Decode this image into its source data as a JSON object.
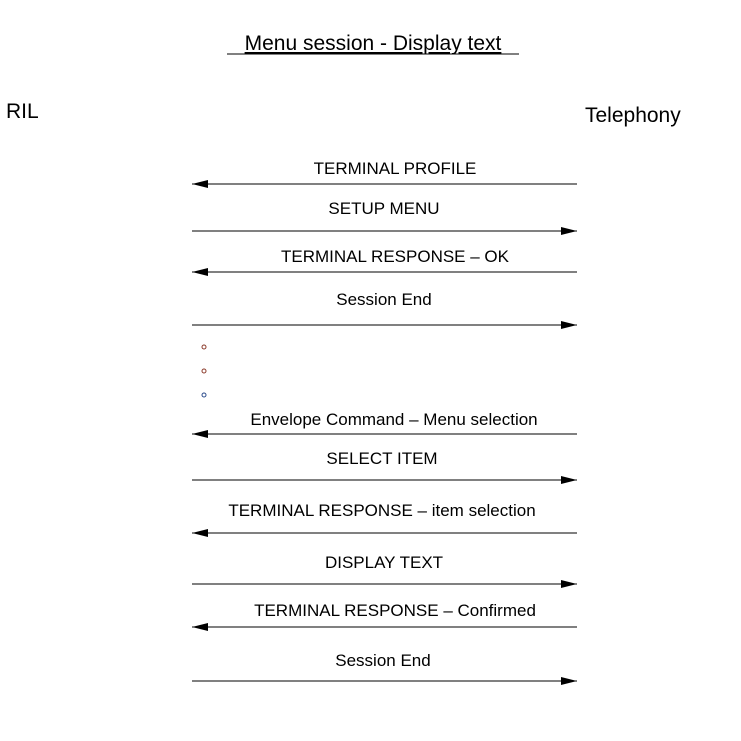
{
  "title": "Menu session - Display text",
  "participants": {
    "left": "RIL",
    "right": "Telephony"
  },
  "messages": [
    {
      "label": "TERMINAL PROFILE",
      "direction": "left"
    },
    {
      "label": "SETUP MENU",
      "direction": "right"
    },
    {
      "label": "TERMINAL RESPONSE – OK",
      "direction": "left"
    },
    {
      "label": "Session End",
      "direction": "right"
    },
    {
      "label": "Envelope Command – Menu selection",
      "direction": "left"
    },
    {
      "label": "SELECT ITEM",
      "direction": "right"
    },
    {
      "label": "TERMINAL RESPONSE – item selection",
      "direction": "left"
    },
    {
      "label": "DISPLAY TEXT",
      "direction": "right"
    },
    {
      "label": "TERMINAL RESPONSE – Confirmed",
      "direction": "left"
    },
    {
      "label": "Session End",
      "direction": "right"
    }
  ],
  "ellipsis_dot_colors": [
    "#8b3a2a",
    "#8b3a2a",
    "#2a4a8b"
  ]
}
